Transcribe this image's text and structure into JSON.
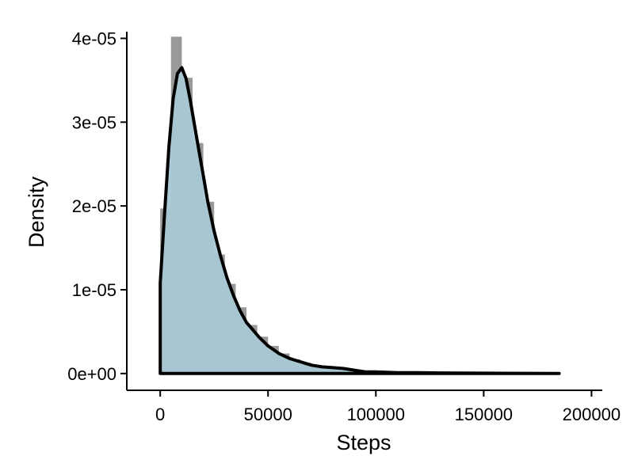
{
  "chart_data": {
    "type": "histogram+density",
    "xlabel": "Steps",
    "ylabel": "Density",
    "xlim": [
      -15500,
      205000
    ],
    "ylim": [
      -2e-06,
      4.08e-05
    ],
    "x_ticks": [
      {
        "value": 0,
        "label": "0"
      },
      {
        "value": 50000,
        "label": "50000"
      },
      {
        "value": 100000,
        "label": "100000"
      },
      {
        "value": 150000,
        "label": "150000"
      },
      {
        "value": 200000,
        "label": "200000"
      }
    ],
    "y_ticks": [
      {
        "value": 0,
        "label": "0e+00"
      },
      {
        "value": 1e-05,
        "label": "1e-05"
      },
      {
        "value": 2e-05,
        "label": "2e-05"
      },
      {
        "value": 3e-05,
        "label": "3e-05"
      },
      {
        "value": 4e-05,
        "label": "4e-05"
      }
    ],
    "histogram": {
      "color": "#999999",
      "bins": [
        {
          "x0": 0,
          "x1": 5000,
          "density": 1.97e-05
        },
        {
          "x0": 5000,
          "x1": 10000,
          "density": 4.02e-05
        },
        {
          "x0": 10000,
          "x1": 15000,
          "density": 3.53e-05
        },
        {
          "x0": 15000,
          "x1": 20000,
          "density": 2.75e-05
        },
        {
          "x0": 20000,
          "x1": 25000,
          "density": 2.05e-05
        },
        {
          "x0": 25000,
          "x1": 30000,
          "density": 1.42e-05
        },
        {
          "x0": 30000,
          "x1": 35000,
          "density": 1.07e-05
        },
        {
          "x0": 35000,
          "x1": 40000,
          "density": 7.9e-06
        },
        {
          "x0": 40000,
          "x1": 45000,
          "density": 5.8e-06
        },
        {
          "x0": 45000,
          "x1": 50000,
          "density": 4.4e-06
        },
        {
          "x0": 50000,
          "x1": 55000,
          "density": 3.3e-06
        },
        {
          "x0": 55000,
          "x1": 60000,
          "density": 2.4e-06
        },
        {
          "x0": 60000,
          "x1": 65000,
          "density": 1.7e-06
        },
        {
          "x0": 65000,
          "x1": 70000,
          "density": 1.3e-06
        },
        {
          "x0": 70000,
          "x1": 75000,
          "density": 1e-06
        },
        {
          "x0": 75000,
          "x1": 80000,
          "density": 8e-07
        },
        {
          "x0": 80000,
          "x1": 85000,
          "density": 7e-07
        },
        {
          "x0": 85000,
          "x1": 90000,
          "density": 6e-07
        },
        {
          "x0": 90000,
          "x1": 95000,
          "density": 4e-07
        },
        {
          "x0": 95000,
          "x1": 100000,
          "density": 3e-07
        },
        {
          "x0": 100000,
          "x1": 110000,
          "density": 2e-07
        },
        {
          "x0": 110000,
          "x1": 130000,
          "density": 1e-07
        },
        {
          "x0": 130000,
          "x1": 185000,
          "density": 5e-08
        }
      ]
    },
    "density": {
      "fill": "#a8c8d4",
      "stroke": "#000000",
      "points": [
        [
          0,
          1.08e-05
        ],
        [
          2000,
          1.9e-05
        ],
        [
          4000,
          2.7e-05
        ],
        [
          6000,
          3.28e-05
        ],
        [
          8000,
          3.58e-05
        ],
        [
          10000,
          3.65e-05
        ],
        [
          12000,
          3.52e-05
        ],
        [
          14000,
          3.25e-05
        ],
        [
          16000,
          2.95e-05
        ],
        [
          18000,
          2.65e-05
        ],
        [
          20000,
          2.36e-05
        ],
        [
          22000,
          2.06e-05
        ],
        [
          25000,
          1.7e-05
        ],
        [
          28000,
          1.4e-05
        ],
        [
          31000,
          1.14e-05
        ],
        [
          34000,
          9.3e-06
        ],
        [
          37000,
          7.5e-06
        ],
        [
          40000,
          6.1e-06
        ],
        [
          43000,
          5.2e-06
        ],
        [
          46000,
          4.3e-06
        ],
        [
          50000,
          3.3e-06
        ],
        [
          55000,
          2.4e-06
        ],
        [
          60000,
          1.8e-06
        ],
        [
          65000,
          1.4e-06
        ],
        [
          70000,
          1e-06
        ],
        [
          75000,
          8e-07
        ],
        [
          80000,
          7e-07
        ],
        [
          85000,
          6e-07
        ],
        [
          90000,
          4e-07
        ],
        [
          95000,
          2e-07
        ],
        [
          100000,
          2e-07
        ],
        [
          110000,
          1e-07
        ],
        [
          120000,
          1e-07
        ],
        [
          130000,
          7e-08
        ],
        [
          150000,
          4e-08
        ],
        [
          170000,
          2e-08
        ],
        [
          185000,
          1e-08
        ]
      ]
    }
  }
}
